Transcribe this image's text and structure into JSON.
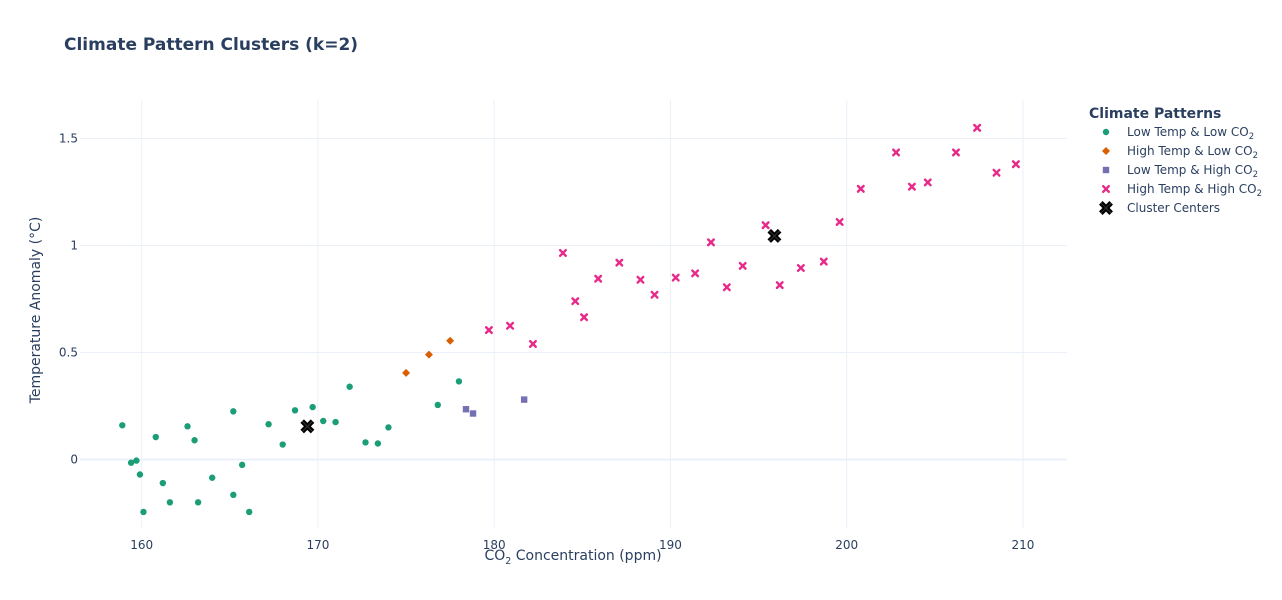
{
  "chart_data": {
    "type": "scatter",
    "title": "Climate Pattern Clusters (k=2)",
    "xlabel": {
      "pre": "CO",
      "sub": "2",
      "post": " Concentration (ppm)"
    },
    "ylabel": "Temperature Anomaly (°C)",
    "xlim": [
      156.5,
      212.5
    ],
    "ylim": [
      -0.32,
      1.68
    ],
    "xticks": [
      160,
      170,
      180,
      190,
      200,
      210
    ],
    "yticks": [
      0,
      0.5,
      1,
      1.5
    ],
    "ytick_labels": [
      "0",
      "0.5",
      "1",
      "1.5"
    ],
    "grid": true,
    "legend": {
      "title": "Climate Patterns",
      "placement": "top-right"
    },
    "series": [
      {
        "name": {
          "pre": "Low Temp & Low CO",
          "sub": "2"
        },
        "color": "#1b9e77",
        "marker": "circle",
        "points": [
          [
            158.9,
            0.16
          ],
          [
            159.4,
            -0.015
          ],
          [
            159.7,
            -0.005
          ],
          [
            159.9,
            -0.07
          ],
          [
            160.1,
            -0.245
          ],
          [
            160.8,
            0.105
          ],
          [
            161.2,
            -0.11
          ],
          [
            161.6,
            -0.2
          ],
          [
            162.6,
            0.155
          ],
          [
            163.0,
            0.09
          ],
          [
            163.2,
            -0.2
          ],
          [
            164.0,
            -0.085
          ],
          [
            165.2,
            0.225
          ],
          [
            165.2,
            -0.165
          ],
          [
            165.7,
            -0.025
          ],
          [
            166.1,
            -0.245
          ],
          [
            167.2,
            0.165
          ],
          [
            168.0,
            0.07
          ],
          [
            168.7,
            0.23
          ],
          [
            169.7,
            0.245
          ],
          [
            170.3,
            0.18
          ],
          [
            171.0,
            0.175
          ],
          [
            171.8,
            0.34
          ],
          [
            172.7,
            0.08
          ],
          [
            173.4,
            0.075
          ],
          [
            174.0,
            0.15
          ],
          [
            176.8,
            0.255
          ],
          [
            178.0,
            0.365
          ]
        ]
      },
      {
        "name": {
          "pre": "High Temp & Low CO",
          "sub": "2"
        },
        "color": "#d95f02",
        "marker": "diamond",
        "points": [
          [
            175.0,
            0.405
          ],
          [
            176.3,
            0.49
          ],
          [
            177.5,
            0.555
          ]
        ]
      },
      {
        "name": {
          "pre": "Low Temp & High CO",
          "sub": "2"
        },
        "color": "#7570b3",
        "marker": "square",
        "points": [
          [
            178.4,
            0.235
          ],
          [
            178.8,
            0.215
          ],
          [
            181.7,
            0.28
          ]
        ]
      },
      {
        "name": {
          "pre": "High Temp & High CO",
          "sub": "2"
        },
        "color": "#e7298a",
        "marker": "x",
        "points": [
          [
            179.7,
            0.605
          ],
          [
            180.9,
            0.625
          ],
          [
            182.2,
            0.54
          ],
          [
            183.9,
            0.965
          ],
          [
            184.6,
            0.74
          ],
          [
            185.1,
            0.665
          ],
          [
            185.9,
            0.845
          ],
          [
            187.1,
            0.92
          ],
          [
            188.3,
            0.84
          ],
          [
            189.1,
            0.77
          ],
          [
            190.3,
            0.85
          ],
          [
            191.4,
            0.87
          ],
          [
            192.3,
            1.015
          ],
          [
            193.2,
            0.805
          ],
          [
            194.1,
            0.905
          ],
          [
            195.4,
            1.095
          ],
          [
            196.2,
            0.815
          ],
          [
            197.4,
            0.895
          ],
          [
            198.7,
            0.925
          ],
          [
            199.6,
            1.11
          ],
          [
            200.8,
            1.265
          ],
          [
            202.8,
            1.435
          ],
          [
            203.7,
            1.275
          ],
          [
            204.6,
            1.295
          ],
          [
            206.2,
            1.435
          ],
          [
            207.4,
            1.55
          ],
          [
            208.5,
            1.34
          ],
          [
            209.6,
            1.38
          ]
        ]
      },
      {
        "name": {
          "pre": "Cluster Centers",
          "sub": ""
        },
        "color": "#000000",
        "marker": "x-bold",
        "points": [
          [
            169.4,
            0.155
          ],
          [
            195.9,
            1.045
          ]
        ]
      }
    ]
  }
}
